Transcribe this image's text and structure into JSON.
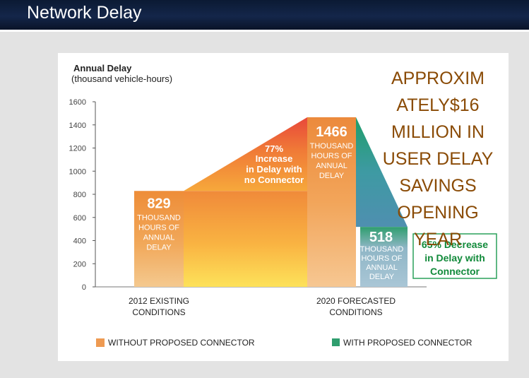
{
  "page": {
    "title": "Network Delay"
  },
  "callout": "APPROXIM ATELY$16 MILLION IN USER DELAY SAVINGS OPENING YEAR",
  "colors": {
    "without": "#f2a23a",
    "with": "#2f9e6e",
    "increase_top": "#e8483a",
    "decrease": "#4f8fb0",
    "decrease_text": "#118a3a",
    "callout": "#8a4b06"
  },
  "chart_data": {
    "type": "bar",
    "title": "Annual Delay",
    "subtitle": "(thousand vehicle-hours)",
    "ylim": [
      0,
      1600
    ],
    "yticks": [
      0,
      200,
      400,
      600,
      800,
      1000,
      1200,
      1400,
      1600
    ],
    "categories": [
      "2012 EXISTING CONDITIONS",
      "2020 FORECASTED CONDITIONS"
    ],
    "series": [
      {
        "name": "WITHOUT PROPOSED CONNECTOR",
        "values": [
          829,
          1466
        ]
      },
      {
        "name": "WITH PROPOSED CONNECTOR",
        "values": [
          null,
          518
        ]
      }
    ],
    "legend_position": "bottom",
    "bar_labels": {
      "existing": {
        "value": "829",
        "unit": [
          "THOUSAND",
          "HOURS OF",
          "ANNUAL",
          "DELAY"
        ]
      },
      "forecast_without": {
        "value": "1466",
        "unit": [
          "THOUSAND",
          "HOURS OF",
          "ANNUAL",
          "DELAY"
        ]
      },
      "forecast_with": {
        "value": "518",
        "unit": [
          "THOUSAND",
          "HOURS OF",
          "ANNUAL",
          "DELAY"
        ]
      }
    },
    "annotations": {
      "increase": [
        "77%",
        "Increase",
        "in Delay with",
        "no Connector"
      ],
      "decrease": [
        "65% Decrease",
        "in Delay with",
        "Connector"
      ]
    }
  }
}
